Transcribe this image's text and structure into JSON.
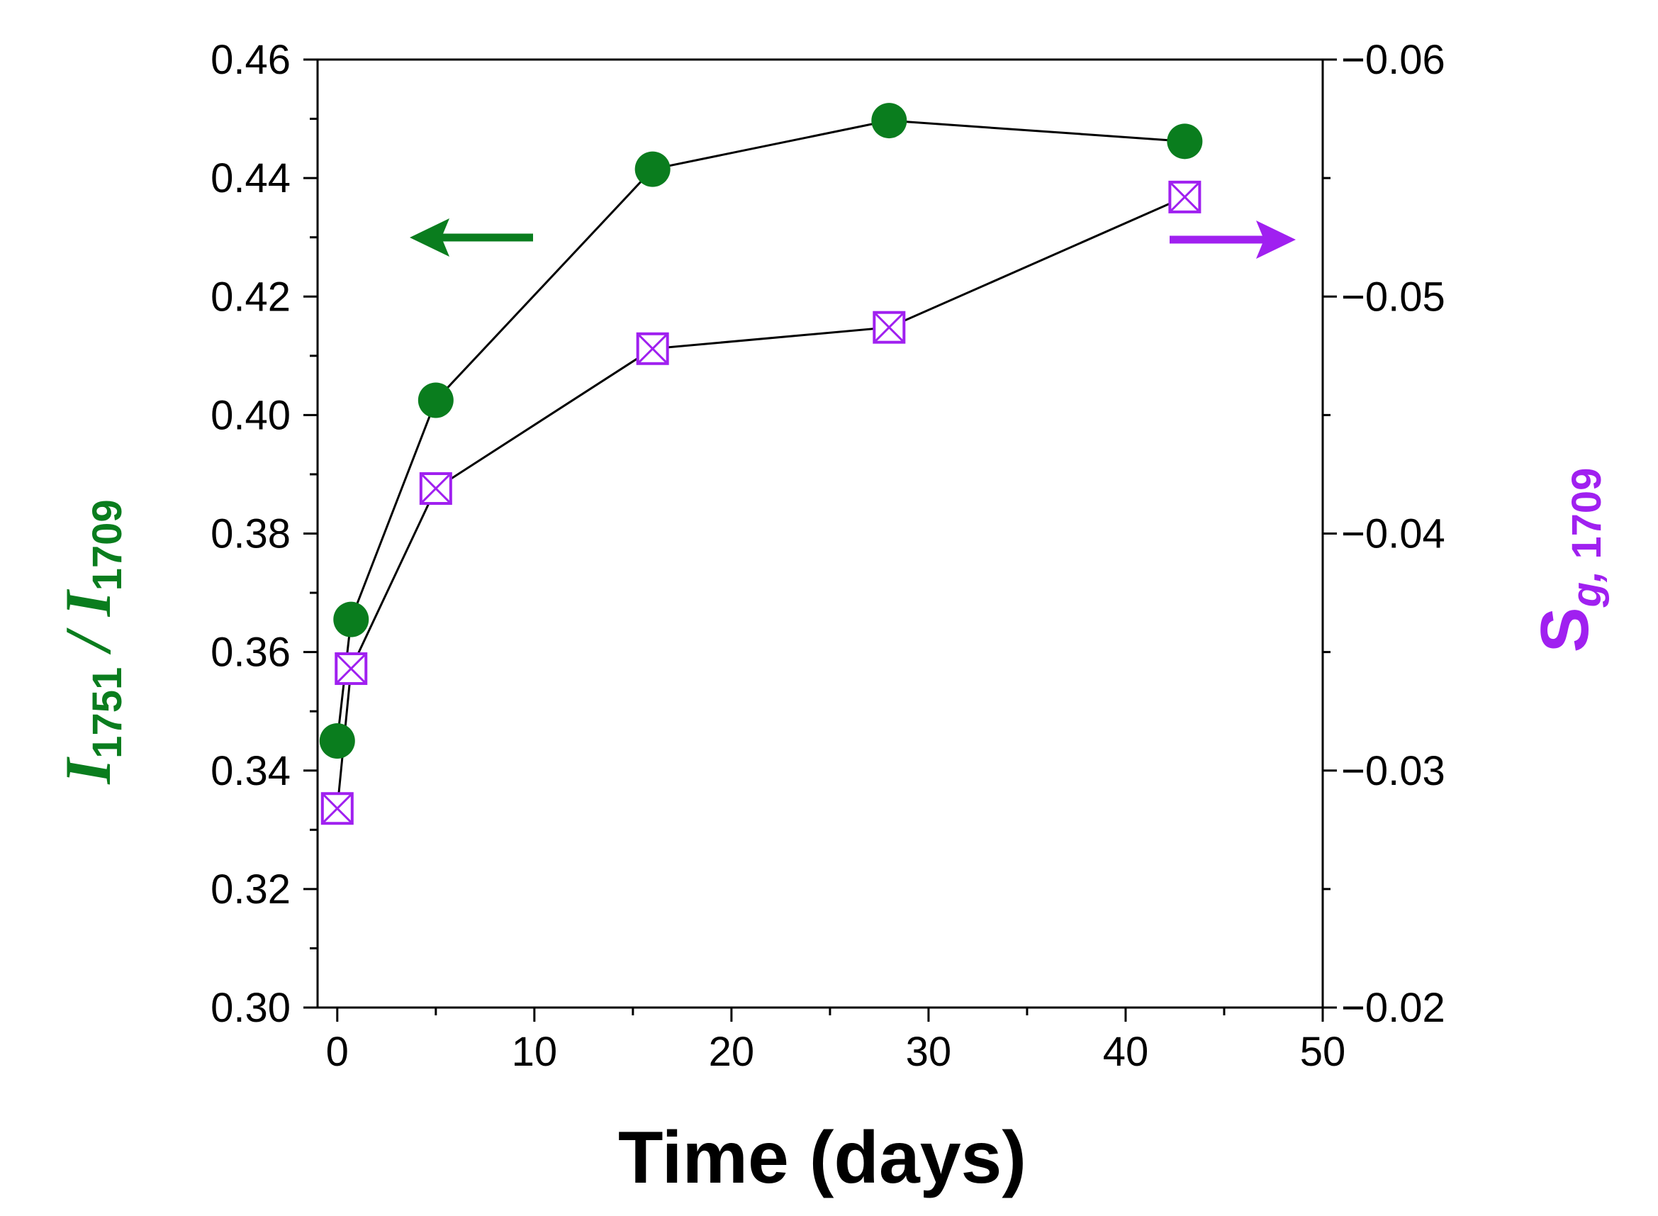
{
  "chart_data": {
    "type": "scatter",
    "title": "",
    "xlabel": "Time (days)",
    "ylabel_left": {
      "main_a": "I",
      "sub_a": "1751",
      "slash": " / ",
      "main_b": "I",
      "sub_b": "1709"
    },
    "ylabel_right": {
      "main": "S",
      "sub_italic": "g,",
      "sub": " 1709"
    },
    "xlim": [
      -1,
      50
    ],
    "ylim_left": [
      0.3,
      0.46
    ],
    "ylim_right": [
      -0.02,
      -0.06
    ],
    "x_ticks": [
      0,
      10,
      20,
      30,
      40,
      50
    ],
    "x_tick_labels": [
      "0",
      "10",
      "20",
      "30",
      "40",
      "50"
    ],
    "y_left_ticks": [
      0.3,
      0.32,
      0.34,
      0.36,
      0.38,
      0.4,
      0.42,
      0.44,
      0.46
    ],
    "y_left_tick_labels": [
      "0.30",
      "0.32",
      "0.34",
      "0.36",
      "0.38",
      "0.40",
      "0.42",
      "0.44",
      "0.46"
    ],
    "y_right_ticks": [
      -0.02,
      -0.03,
      -0.04,
      -0.05,
      -0.06
    ],
    "y_right_tick_labels": [
      "−0.02",
      "−0.03",
      "−0.04",
      "−0.05",
      "−0.06"
    ],
    "grid": false,
    "colors": {
      "left_series": "#0a7d1e",
      "right_series": "#a020f0",
      "line": "#000000",
      "axes": "#000000"
    },
    "series": [
      {
        "axis": "left",
        "marker": "filled-circle",
        "color": "#0a7d1e",
        "x": [
          0,
          0.7,
          5,
          16,
          28,
          43
        ],
        "y": [
          0.345,
          0.3655,
          0.4025,
          0.4415,
          0.4497,
          0.4462
        ]
      },
      {
        "axis": "right",
        "marker": "crossed-square",
        "color": "#a020f0",
        "x": [
          0,
          0.7,
          5,
          16,
          28,
          43
        ],
        "y": [
          -0.0284,
          -0.0343,
          -0.0419,
          -0.0478,
          -0.0487,
          -0.0542
        ]
      }
    ],
    "annotations": [
      {
        "type": "arrow",
        "direction": "left",
        "color": "#0a7d1e",
        "points_to": "left-axis"
      },
      {
        "type": "arrow",
        "direction": "right",
        "color": "#a020f0",
        "points_to": "right-axis"
      }
    ]
  }
}
